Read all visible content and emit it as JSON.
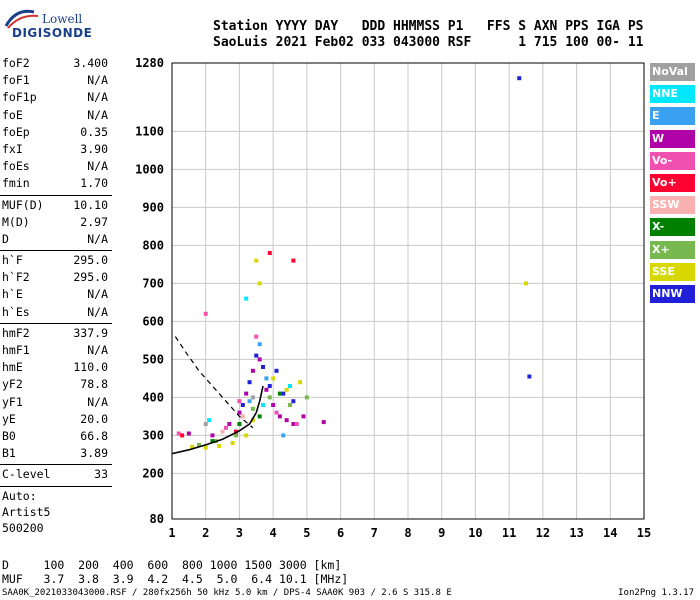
{
  "logo": {
    "top": "Lowell",
    "bottom": "DIGISONDE"
  },
  "header": {
    "line1": "Station YYYY DAY   DDD HHMMSS P1   FFS S AXN PPS IGA PS",
    "line2": "SaoLuis 2021 Feb02 033 043000 RSF      1 715 100 00- 11"
  },
  "params": {
    "group1": [
      {
        "name": "foF2",
        "value": "3.400"
      },
      {
        "name": "foF1",
        "value": "N/A"
      },
      {
        "name": "foF1p",
        "value": "N/A"
      },
      {
        "name": "foE",
        "value": "N/A"
      },
      {
        "name": "foEp",
        "value": "0.35"
      },
      {
        "name": "fxI",
        "value": "3.90"
      },
      {
        "name": "foEs",
        "value": "N/A"
      },
      {
        "name": "fmin",
        "value": "1.70"
      }
    ],
    "group2": [
      {
        "name": "MUF(D)",
        "value": "10.10"
      },
      {
        "name": "M(D)",
        "value": "2.97"
      },
      {
        "name": "D",
        "value": "N/A"
      }
    ],
    "group3": [
      {
        "name": "h`F",
        "value": "295.0"
      },
      {
        "name": "h`F2",
        "value": "295.0"
      },
      {
        "name": "h`E",
        "value": "N/A"
      },
      {
        "name": "h`Es",
        "value": "N/A"
      }
    ],
    "group4": [
      {
        "name": "hmF2",
        "value": "337.9"
      },
      {
        "name": "hmF1",
        "value": "N/A"
      },
      {
        "name": "hmE",
        "value": "110.0"
      },
      {
        "name": "yF2",
        "value": "78.8"
      },
      {
        "name": "yF1",
        "value": "N/A"
      },
      {
        "name": "yE",
        "value": "20.0"
      },
      {
        "name": "B0",
        "value": "66.8"
      },
      {
        "name": "B1",
        "value": "3.89"
      }
    ],
    "group5": [
      {
        "name": "C-level",
        "value": "33"
      }
    ],
    "auto": [
      "Auto:",
      "Artist5",
      "500200"
    ]
  },
  "legend": [
    {
      "label": "NoVal",
      "color": "#a0a0a0"
    },
    {
      "label": "NNE",
      "color": "#00e8ff"
    },
    {
      "label": "E",
      "color": "#3aa0f0"
    },
    {
      "label": "W",
      "color": "#b000a8"
    },
    {
      "label": "Vo-",
      "color": "#f050b0"
    },
    {
      "label": "Vo+",
      "color": "#ff0030"
    },
    {
      "label": "SSW",
      "color": "#f8b0b0"
    },
    {
      "label": "X-",
      "color": "#008000"
    },
    {
      "label": "X+",
      "color": "#78b850"
    },
    {
      "label": "SSE",
      "color": "#d8d800"
    },
    {
      "label": "NNW",
      "color": "#2020d8"
    }
  ],
  "footer": {
    "line1": "D     100  200  400  600  800 1000 1500 3000 [km]",
    "line2": "MUF   3.7  3.8  3.9  4.2  4.5  5.0  6.4 10.1 [MHz]",
    "file": "SAA0K_2021033043000.RSF / 280fx256h 50 kHz 5.0 km / DPS-4 SAA0K 903 / 2.6 S 315.8 E",
    "version": "Ion2Png 1.3.17"
  },
  "chart_data": {
    "type": "scatter",
    "title": "",
    "xlabel": "",
    "ylabel": "",
    "xlim": [
      1,
      15
    ],
    "ylim": [
      80,
      1280
    ],
    "x_ticks": [
      1,
      2,
      3,
      4,
      5,
      6,
      7,
      8,
      9,
      10,
      11,
      12,
      13,
      14,
      15
    ],
    "y_ticks": [
      80,
      200,
      300,
      400,
      500,
      600,
      700,
      800,
      900,
      1000,
      1100,
      1280
    ],
    "grid": true,
    "series": [
      {
        "name": "W",
        "color": "#b000a8",
        "points": [
          [
            1.5,
            305
          ],
          [
            2.2,
            300
          ],
          [
            2.7,
            330
          ],
          [
            3.0,
            360
          ],
          [
            3.2,
            410
          ],
          [
            3.4,
            470
          ],
          [
            3.6,
            500
          ],
          [
            3.8,
            420
          ],
          [
            4.0,
            380
          ],
          [
            4.2,
            350
          ],
          [
            4.4,
            340
          ],
          [
            4.6,
            330
          ],
          [
            4.9,
            350
          ],
          [
            5.5,
            335
          ]
        ]
      },
      {
        "name": "NNW",
        "color": "#2020d8",
        "points": [
          [
            3.1,
            380
          ],
          [
            3.3,
            440
          ],
          [
            3.5,
            510
          ],
          [
            3.7,
            480
          ],
          [
            3.9,
            430
          ],
          [
            4.1,
            470
          ],
          [
            4.3,
            410
          ],
          [
            4.6,
            390
          ],
          [
            11.3,
            1240
          ],
          [
            11.6,
            455
          ]
        ]
      },
      {
        "name": "SSE",
        "color": "#d8d800",
        "points": [
          [
            1.6,
            270
          ],
          [
            2.0,
            268
          ],
          [
            2.4,
            272
          ],
          [
            2.8,
            280
          ],
          [
            3.2,
            300
          ],
          [
            3.4,
            340
          ],
          [
            3.6,
            700
          ],
          [
            3.5,
            760
          ],
          [
            4.0,
            450
          ],
          [
            4.4,
            420
          ],
          [
            4.8,
            440
          ],
          [
            11.5,
            700
          ]
        ]
      },
      {
        "name": "X+",
        "color": "#78b850",
        "points": [
          [
            1.8,
            275
          ],
          [
            2.3,
            285
          ],
          [
            2.9,
            300
          ],
          [
            3.4,
            370
          ],
          [
            3.9,
            400
          ],
          [
            4.5,
            380
          ],
          [
            5.0,
            400
          ]
        ]
      },
      {
        "name": "Vo-",
        "color": "#f050b0",
        "points": [
          [
            1.2,
            305
          ],
          [
            2.0,
            620
          ],
          [
            2.6,
            320
          ],
          [
            3.0,
            390
          ],
          [
            3.5,
            560
          ],
          [
            4.1,
            360
          ],
          [
            4.7,
            330
          ]
        ]
      },
      {
        "name": "E",
        "color": "#3aa0f0",
        "points": [
          [
            3.3,
            390
          ],
          [
            3.8,
            450
          ],
          [
            4.3,
            300
          ],
          [
            3.6,
            540
          ]
        ]
      },
      {
        "name": "NNE",
        "color": "#00e8ff",
        "points": [
          [
            2.1,
            340
          ],
          [
            3.2,
            660
          ],
          [
            3.7,
            380
          ],
          [
            4.5,
            430
          ]
        ]
      },
      {
        "name": "Vo+",
        "color": "#ff0030",
        "points": [
          [
            1.3,
            300
          ],
          [
            2.9,
            310
          ],
          [
            3.9,
            780
          ],
          [
            4.6,
            760
          ]
        ]
      },
      {
        "name": "X-",
        "color": "#008000",
        "points": [
          [
            2.2,
            285
          ],
          [
            3.0,
            330
          ],
          [
            3.6,
            350
          ],
          [
            4.2,
            410
          ]
        ]
      },
      {
        "name": "SSW",
        "color": "#f8b0b0",
        "points": [
          [
            2.5,
            310
          ],
          [
            3.1,
            350
          ]
        ]
      },
      {
        "name": "NoVal",
        "color": "#a0a0a0",
        "points": [
          [
            2.0,
            330
          ],
          [
            3.4,
            400
          ]
        ]
      }
    ],
    "trace": [
      [
        1.0,
        252
      ],
      [
        1.5,
        262
      ],
      [
        2.0,
        275
      ],
      [
        2.5,
        290
      ],
      [
        3.0,
        312
      ],
      [
        3.3,
        330
      ],
      [
        3.5,
        360
      ],
      [
        3.6,
        390
      ],
      [
        3.7,
        430
      ]
    ],
    "dashed_trace": [
      [
        1.1,
        560
      ],
      [
        1.4,
        520
      ],
      [
        1.8,
        470
      ],
      [
        2.2,
        430
      ],
      [
        2.6,
        390
      ],
      [
        3.0,
        350
      ],
      [
        3.4,
        320
      ]
    ]
  }
}
